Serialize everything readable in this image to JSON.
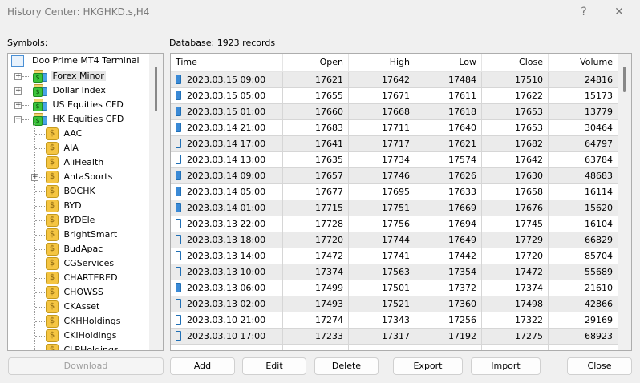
{
  "window": {
    "title": "History Center: HKGHKD.s,H4",
    "help": "?",
    "close": "✕"
  },
  "symbols_label": "Symbols:",
  "database_label": "Database: 1923 records",
  "tree": {
    "root": "Doo Prime MT4 Terminal",
    "groups": [
      {
        "label": "Forex Minor",
        "expanded": false,
        "selected": true
      },
      {
        "label": "Dollar Index",
        "expanded": false
      },
      {
        "label": "US Equities CFD",
        "expanded": false
      },
      {
        "label": "HK Equities CFD",
        "expanded": true
      }
    ],
    "symbols": [
      "AAC",
      "AIA",
      "AliHealth",
      "AntaSports",
      "BOCHK",
      "BYD",
      "BYDEle",
      "BrightSmart",
      "BudApac",
      "CGServices",
      "CHARTERED",
      "CHOWSS",
      "CKAsset",
      "CKHHoldings",
      "CKIHoldings",
      "CLPHoldings"
    ],
    "expandable_symbols": [
      "AntaSports"
    ]
  },
  "table": {
    "columns": [
      "Time",
      "Open",
      "High",
      "Low",
      "Close",
      "Volume"
    ],
    "rows": [
      [
        "2023.03.15 09:00",
        "17621",
        "17642",
        "17484",
        "17510",
        "24816"
      ],
      [
        "2023.03.15 05:00",
        "17655",
        "17671",
        "17611",
        "17622",
        "15173"
      ],
      [
        "2023.03.15 01:00",
        "17660",
        "17668",
        "17618",
        "17653",
        "13779"
      ],
      [
        "2023.03.14 21:00",
        "17683",
        "17711",
        "17640",
        "17653",
        "30464"
      ],
      [
        "2023.03.14 17:00",
        "17641",
        "17717",
        "17621",
        "17682",
        "64797"
      ],
      [
        "2023.03.14 13:00",
        "17635",
        "17734",
        "17574",
        "17642",
        "63784"
      ],
      [
        "2023.03.14 09:00",
        "17657",
        "17746",
        "17626",
        "17630",
        "48683"
      ],
      [
        "2023.03.14 05:00",
        "17677",
        "17695",
        "17633",
        "17658",
        "16114"
      ],
      [
        "2023.03.14 01:00",
        "17715",
        "17751",
        "17669",
        "17676",
        "15620"
      ],
      [
        "2023.03.13 22:00",
        "17728",
        "17756",
        "17694",
        "17745",
        "16104"
      ],
      [
        "2023.03.13 18:00",
        "17720",
        "17744",
        "17649",
        "17729",
        "66829"
      ],
      [
        "2023.03.13 14:00",
        "17472",
        "17741",
        "17442",
        "17720",
        "85704"
      ],
      [
        "2023.03.13 10:00",
        "17374",
        "17563",
        "17354",
        "17472",
        "55689"
      ],
      [
        "2023.03.13 06:00",
        "17499",
        "17501",
        "17372",
        "17374",
        "21610"
      ],
      [
        "2023.03.13 02:00",
        "17493",
        "17521",
        "17360",
        "17498",
        "42866"
      ],
      [
        "2023.03.10 21:00",
        "17274",
        "17343",
        "17256",
        "17322",
        "29169"
      ],
      [
        "2023.03.10 17:00",
        "17233",
        "17317",
        "17192",
        "17275",
        "68923"
      ]
    ]
  },
  "buttons": {
    "download": "Download",
    "add": "Add",
    "edit": "Edit",
    "delete": "Delete",
    "export": "Export",
    "import": "Import",
    "close": "Close"
  }
}
